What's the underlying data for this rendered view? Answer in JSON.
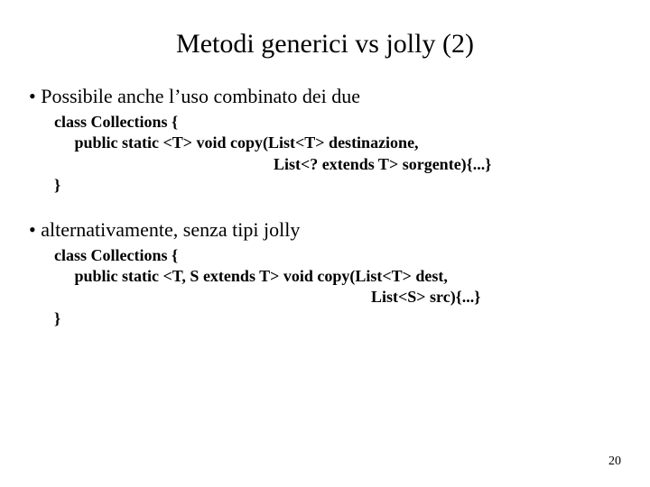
{
  "title": "Metodi generici vs jolly (2)",
  "bullet1": "Possibile anche l’uso combinato dei due",
  "code1": {
    "l1": "class Collections {",
    "l2": "     public static <T> void copy(List<T> destinazione,",
    "l3": "                                                      List<? extends T> sorgente){...}",
    "l4": "}"
  },
  "bullet2": "alternativamente, senza tipi jolly",
  "code2": {
    "l1": "class Collections {",
    "l2": "     public static <T, S extends T> void copy(List<T> dest,",
    "l3": "                                                                              List<S> src){...}",
    "l4": "}"
  },
  "pageNumber": "20",
  "colors": {
    "background": "#ffffff",
    "text": "#000000"
  },
  "typography": {
    "fontFamily": "Times New Roman",
    "titleSize": 30,
    "bulletSize": 22,
    "codeSize": 18,
    "pageNumSize": 14
  }
}
